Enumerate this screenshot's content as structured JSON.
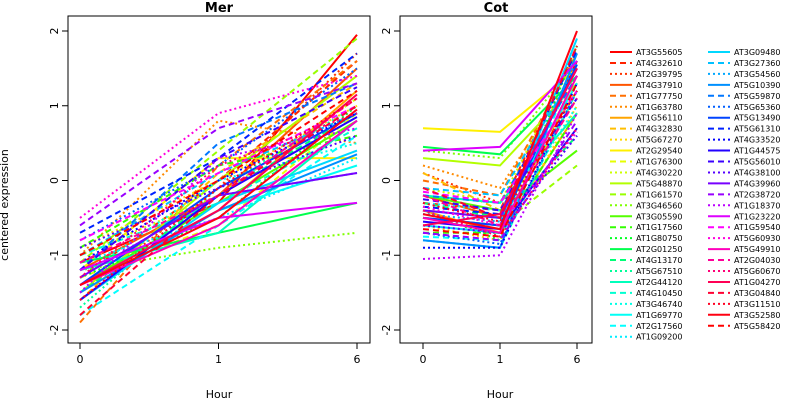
{
  "chart_data": {
    "type": "line",
    "ylabel": "centered expression",
    "xlabel": "Hour",
    "x_ticks": [
      "0",
      "1",
      "6"
    ],
    "ylim": [
      -2,
      2
    ],
    "y_ticks": [
      "-2",
      "-1",
      "0",
      "1",
      "2"
    ],
    "grid": false,
    "legend_position": "right",
    "legend": [
      {
        "name": "AT3G55605",
        "color": "#ff0000",
        "lty": "solid"
      },
      {
        "name": "AT4G32610",
        "color": "#ff2200",
        "lty": "dashed"
      },
      {
        "name": "AT2G39795",
        "color": "#ff3300",
        "lty": "dotted"
      },
      {
        "name": "AT4G37910",
        "color": "#ff5500",
        "lty": "solid"
      },
      {
        "name": "AT1G77750",
        "color": "#ff6f00",
        "lty": "dashed"
      },
      {
        "name": "AT1G63780",
        "color": "#ff8a00",
        "lty": "dotted"
      },
      {
        "name": "AT1G56110",
        "color": "#ffa500",
        "lty": "solid"
      },
      {
        "name": "AT4G32830",
        "color": "#ffbf00",
        "lty": "dashed"
      },
      {
        "name": "AT5G67270",
        "color": "#ffd800",
        "lty": "dotted"
      },
      {
        "name": "AT2G29540",
        "color": "#fff000",
        "lty": "solid"
      },
      {
        "name": "AT1G76300",
        "color": "#e6ff00",
        "lty": "dashed"
      },
      {
        "name": "AT4G30220",
        "color": "#ccff00",
        "lty": "dotted"
      },
      {
        "name": "AT5G48870",
        "color": "#b3ff00",
        "lty": "solid"
      },
      {
        "name": "AT1G61570",
        "color": "#99ff00",
        "lty": "dashed"
      },
      {
        "name": "AT3G46560",
        "color": "#7fff00",
        "lty": "dotted"
      },
      {
        "name": "AT3G05590",
        "color": "#55ff00",
        "lty": "solid"
      },
      {
        "name": "AT1G17560",
        "color": "#33ff00",
        "lty": "dashed"
      },
      {
        "name": "AT1G80750",
        "color": "#00ff22",
        "lty": "dotted"
      },
      {
        "name": "AT2G01250",
        "color": "#00ff4d",
        "lty": "solid"
      },
      {
        "name": "AT4G13170",
        "color": "#00ff77",
        "lty": "dashed"
      },
      {
        "name": "AT5G67510",
        "color": "#00ff99",
        "lty": "dotted"
      },
      {
        "name": "AT2G44120",
        "color": "#00ffbb",
        "lty": "solid"
      },
      {
        "name": "AT4G10450",
        "color": "#00ffd0",
        "lty": "dashed"
      },
      {
        "name": "AT3G46740",
        "color": "#00ffe5",
        "lty": "dotted"
      },
      {
        "name": "AT1G69770",
        "color": "#00fff5",
        "lty": "solid"
      },
      {
        "name": "AT2G17560",
        "color": "#00ffff",
        "lty": "dashed"
      },
      {
        "name": "AT1G09200",
        "color": "#00eeff",
        "lty": "dotted"
      },
      {
        "name": "AT3G09480",
        "color": "#00d8ff",
        "lty": "solid"
      },
      {
        "name": "AT3G27360",
        "color": "#00c0ff",
        "lty": "dashed"
      },
      {
        "name": "AT3G54560",
        "color": "#00a8ff",
        "lty": "dotted"
      },
      {
        "name": "AT5G10390",
        "color": "#0090ff",
        "lty": "solid"
      },
      {
        "name": "AT5G59870",
        "color": "#0077ff",
        "lty": "dashed"
      },
      {
        "name": "AT5G65360",
        "color": "#005eff",
        "lty": "dotted"
      },
      {
        "name": "AT5G13490",
        "color": "#0044ff",
        "lty": "solid"
      },
      {
        "name": "AT5G61310",
        "color": "#0022ff",
        "lty": "dashed"
      },
      {
        "name": "AT4G33520",
        "color": "#0000ff",
        "lty": "dotted"
      },
      {
        "name": "AT1G44575",
        "color": "#2200ff",
        "lty": "solid"
      },
      {
        "name": "AT5G56010",
        "color": "#3b00ff",
        "lty": "dashed"
      },
      {
        "name": "AT4G38100",
        "color": "#5500ff",
        "lty": "dotted"
      },
      {
        "name": "AT4G39960",
        "color": "#7700ff",
        "lty": "solid"
      },
      {
        "name": "AT2G38720",
        "color": "#9900ff",
        "lty": "dashed"
      },
      {
        "name": "AT1G18370",
        "color": "#bb00ff",
        "lty": "dotted"
      },
      {
        "name": "AT1G23220",
        "color": "#dd00ff",
        "lty": "solid"
      },
      {
        "name": "AT1G59540",
        "color": "#ff00ff",
        "lty": "dashed"
      },
      {
        "name": "AT5G60930",
        "color": "#ff00dd",
        "lty": "dotted"
      },
      {
        "name": "AT5G49910",
        "color": "#ff00bb",
        "lty": "solid"
      },
      {
        "name": "AT2G04030",
        "color": "#ff0099",
        "lty": "dashed"
      },
      {
        "name": "AT5G60670",
        "color": "#ff0077",
        "lty": "dotted"
      },
      {
        "name": "AT1G04270",
        "color": "#ff0055",
        "lty": "solid"
      },
      {
        "name": "AT3G04840",
        "color": "#ff0033",
        "lty": "dashed"
      },
      {
        "name": "AT3G11510",
        "color": "#ff0022",
        "lty": "dotted"
      },
      {
        "name": "AT3G52580",
        "color": "#ff0011",
        "lty": "solid"
      },
      {
        "name": "AT5G58420",
        "color": "#ff0000",
        "lty": "dashed"
      }
    ],
    "panels": [
      {
        "title": "Mer",
        "series": [
          [
            -1.1,
            -0.3,
            1.95
          ],
          [
            -1.3,
            0.0,
            1.6
          ],
          [
            -1.5,
            -0.1,
            1.7
          ],
          [
            -1.2,
            -0.2,
            1.5
          ],
          [
            -1.9,
            0.2,
            1.6
          ],
          [
            -1.0,
            0.8,
            0.5
          ],
          [
            -1.4,
            -0.4,
            1.2
          ],
          [
            -1.6,
            0.1,
            1.3
          ],
          [
            -0.9,
            0.0,
            1.0
          ],
          [
            -1.2,
            0.3,
            0.3
          ],
          [
            -1.3,
            -0.6,
            0.9
          ],
          [
            -1.0,
            -0.2,
            1.1
          ],
          [
            -1.5,
            0.0,
            1.4
          ],
          [
            -1.1,
            0.4,
            1.9
          ],
          [
            -1.2,
            -0.9,
            -0.7
          ],
          [
            -1.4,
            -0.3,
            0.8
          ],
          [
            -0.9,
            0.2,
            0.6
          ],
          [
            -1.3,
            -0.5,
            1.0
          ],
          [
            -1.1,
            -0.7,
            -0.3
          ],
          [
            -1.5,
            -0.2,
            0.9
          ],
          [
            -1.7,
            -0.1,
            1.0
          ],
          [
            -1.2,
            -0.7,
            0.8
          ],
          [
            -1.0,
            -0.3,
            0.7
          ],
          [
            -1.3,
            0.0,
            0.5
          ],
          [
            -1.4,
            -0.4,
            0.2
          ],
          [
            -1.8,
            -0.6,
            0.6
          ],
          [
            -1.1,
            -0.5,
            0.3
          ],
          [
            -1.6,
            -0.3,
            0.4
          ],
          [
            -1.0,
            0.1,
            0.9
          ],
          [
            -1.3,
            -0.2,
            0.1
          ],
          [
            -1.5,
            -0.4,
            0.35
          ],
          [
            -1.2,
            0.5,
            1.3
          ],
          [
            -0.8,
            0.2,
            1.5
          ],
          [
            -1.4,
            -0.1,
            0.9
          ],
          [
            -0.7,
            0.3,
            1.7
          ],
          [
            -1.1,
            0.0,
            0.9
          ],
          [
            -1.6,
            -0.2,
            0.85
          ],
          [
            -1.2,
            0.3,
            1.25
          ],
          [
            -0.9,
            -0.1,
            0.6
          ],
          [
            -1.3,
            -0.2,
            0.1
          ],
          [
            -0.6,
            0.7,
            1.3
          ],
          [
            -1.5,
            0.3,
            0.7
          ],
          [
            -1.2,
            -0.5,
            -0.3
          ],
          [
            -0.8,
            0.1,
            1.0
          ],
          [
            -0.5,
            0.9,
            1.4
          ],
          [
            -1.4,
            -0.6,
            0.8
          ],
          [
            -1.1,
            -0.2,
            1.1
          ],
          [
            -1.3,
            0.2,
            0.9
          ],
          [
            -1.4,
            -0.4,
            1.15
          ],
          [
            -1.8,
            -0.2,
            1.0
          ],
          [
            -1.6,
            -0.1,
            1.1
          ],
          [
            -1.4,
            -0.5,
            0.95
          ],
          [
            -1.0,
            0.0,
            1.2
          ]
        ]
      },
      {
        "title": "Cot",
        "series": [
          [
            -0.5,
            -0.6,
            1.6
          ],
          [
            -0.3,
            -0.4,
            1.8
          ],
          [
            0.1,
            -0.3,
            1.4
          ],
          [
            -0.2,
            -0.5,
            1.3
          ],
          [
            0.0,
            -0.2,
            1.7
          ],
          [
            0.2,
            -0.1,
            1.5
          ],
          [
            -0.4,
            -0.7,
            0.9
          ],
          [
            0.1,
            -0.4,
            1.2
          ],
          [
            -0.6,
            -0.8,
            1.0
          ],
          [
            0.7,
            0.65,
            1.5
          ],
          [
            -0.3,
            -0.5,
            1.1
          ],
          [
            -0.1,
            -0.3,
            1.7
          ],
          [
            0.3,
            0.2,
            1.3
          ],
          [
            -0.5,
            -0.6,
            0.2
          ],
          [
            0.4,
            0.3,
            1.6
          ],
          [
            -0.2,
            -0.4,
            0.4
          ],
          [
            -0.7,
            -0.7,
            0.9
          ],
          [
            -0.4,
            -0.8,
            1.8
          ],
          [
            0.45,
            0.35,
            1.4
          ],
          [
            -0.3,
            -0.5,
            0.6
          ],
          [
            -0.6,
            -0.7,
            1.4
          ],
          [
            -0.2,
            -0.3,
            0.9
          ],
          [
            -0.8,
            -0.9,
            1.2
          ],
          [
            -0.5,
            -0.6,
            1.0
          ],
          [
            -0.4,
            -0.5,
            1.3
          ],
          [
            -0.75,
            -0.8,
            1.55
          ],
          [
            -0.3,
            -0.4,
            1.1
          ],
          [
            -0.6,
            -0.7,
            1.9
          ],
          [
            -0.1,
            -0.2,
            1.5
          ],
          [
            -0.45,
            -0.55,
            1.6
          ],
          [
            -0.8,
            -0.9,
            1.7
          ],
          [
            -0.2,
            -0.3,
            1.4
          ],
          [
            -0.7,
            -0.85,
            1.2
          ],
          [
            -0.5,
            -0.6,
            1.55
          ],
          [
            -0.35,
            -0.45,
            1.75
          ],
          [
            -0.9,
            -0.9,
            1.3
          ],
          [
            -0.55,
            -0.65,
            0.7
          ],
          [
            -0.25,
            -0.4,
            1.1
          ],
          [
            -0.6,
            -0.7,
            0.6
          ],
          [
            -0.4,
            -0.5,
            1.5
          ],
          [
            -0.7,
            -0.8,
            0.8
          ],
          [
            -1.05,
            -1.0,
            0.9
          ],
          [
            0.4,
            0.45,
            1.6
          ],
          [
            -0.15,
            -0.3,
            1.2
          ],
          [
            -0.35,
            -0.6,
            0.65
          ],
          [
            -0.5,
            -0.7,
            1.4
          ],
          [
            -0.2,
            -0.6,
            1.1
          ],
          [
            -0.4,
            -0.75,
            0.7
          ],
          [
            -0.6,
            -0.45,
            1.5
          ],
          [
            -0.1,
            -0.5,
            1.8
          ],
          [
            -0.3,
            -0.55,
            1.2
          ],
          [
            -0.45,
            -0.65,
            2.0
          ],
          [
            -0.65,
            -0.75,
            1.3
          ]
        ]
      }
    ]
  }
}
